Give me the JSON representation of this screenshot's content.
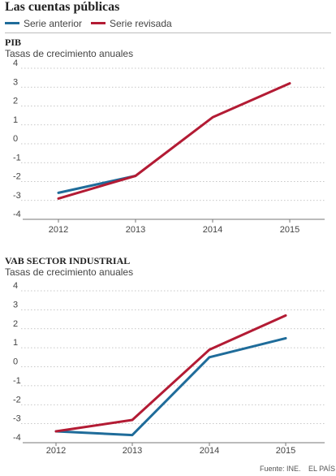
{
  "title": "Las cuentas públicas",
  "legend": {
    "items": [
      {
        "label": "Serie anterior",
        "color": "#1f6c9a"
      },
      {
        "label": "Serie revisada",
        "color": "#b31b34"
      }
    ]
  },
  "footer": {
    "source": "Fuente: INE.",
    "brand": "EL PAÍS"
  },
  "chart_data": [
    {
      "type": "line",
      "title": "PIB",
      "subtitle": "Tasas de crecimiento anuales",
      "categories": [
        "2012",
        "2013",
        "2014",
        "2015"
      ],
      "ylim": [
        -4,
        4
      ],
      "yticks": [
        "4",
        "3",
        "2",
        "1",
        "0",
        "-1",
        "-2",
        "-3",
        "-4"
      ],
      "grid": true,
      "series": [
        {
          "name": "Serie anterior",
          "color": "#1f6c9a",
          "values": [
            -2.6,
            -1.7,
            null,
            null
          ]
        },
        {
          "name": "Serie revisada",
          "color": "#b31b34",
          "values": [
            -2.9,
            -1.7,
            1.4,
            3.2
          ]
        }
      ]
    },
    {
      "type": "line",
      "title": "VAB SECTOR INDUSTRIAL",
      "subtitle": "Tasas de crecimiento anuales",
      "categories": [
        "2012",
        "2013",
        "2014",
        "2015"
      ],
      "ylim": [
        -4,
        4
      ],
      "yticks": [
        "4",
        "3",
        "2",
        "1",
        "0",
        "-1",
        "-2",
        "-3",
        "-4"
      ],
      "grid": true,
      "series": [
        {
          "name": "Serie anterior",
          "color": "#1f6c9a",
          "values": [
            -3.4,
            -3.6,
            0.5,
            1.5
          ]
        },
        {
          "name": "Serie revisada",
          "color": "#b31b34",
          "values": [
            -3.4,
            -2.8,
            0.9,
            2.7
          ]
        }
      ]
    }
  ]
}
